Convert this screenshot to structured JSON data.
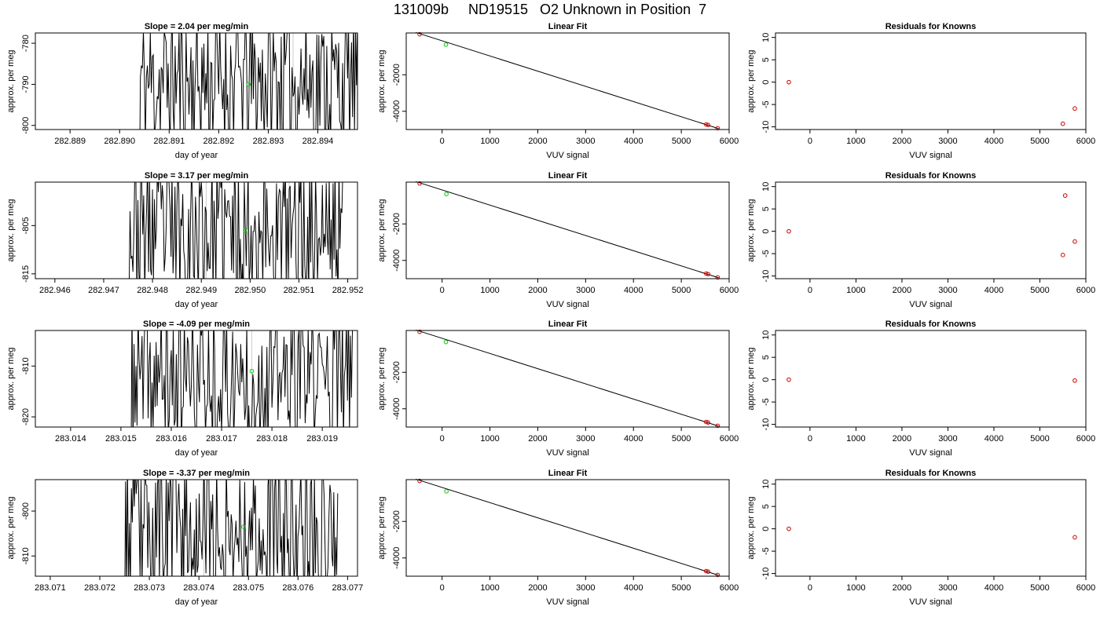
{
  "title": "131009b     ND19515   O2 Unknown in Position  7",
  "panel_labels": {
    "ylabel": "approx. per meg",
    "time_xlabel": "day of year",
    "fit_title": "Linear Fit",
    "fit_xlabel": "VUV signal",
    "resid_title": "Residuals for Knowns"
  },
  "colors": {
    "trace": "#000000",
    "marker_green": "#00cc00",
    "marker_red": "#cc0000",
    "grid_line": "#cccccc",
    "frame": "#000000"
  },
  "chart_data": [
    {
      "type": "line",
      "title": "Slope =  2.04  per meg/min",
      "xlabel": "day of year",
      "ylabel": "approx. per meg",
      "xlim": [
        282.8883,
        282.8948
      ],
      "ylim": [
        -801,
        -777.5
      ],
      "x_ticks": [
        "282.889",
        "282.890",
        "282.891",
        "282.892",
        "282.893",
        "282.894"
      ],
      "y_ticks": [
        "-800",
        "-790",
        "-780"
      ],
      "vlines": [
        282.8918,
        282.8935
      ],
      "trace_x_range": [
        282.8904,
        282.8948
      ],
      "seed": 11,
      "green_point": [
        282.8926,
        -790
      ]
    },
    {
      "type": "line",
      "title": "Slope =  3.17  per meg/min",
      "xlabel": "day of year",
      "ylabel": "approx. per meg",
      "xlim": [
        282.9456,
        282.9522
      ],
      "ylim": [
        -816,
        -796
      ],
      "x_ticks": [
        "282.946",
        "282.947",
        "282.948",
        "282.949",
        "282.950",
        "282.951",
        "282.952"
      ],
      "y_ticks": [
        "-815",
        "-805"
      ],
      "vlines": [
        282.9491,
        282.9508
      ],
      "trace_x_range": [
        282.9475,
        282.9519
      ],
      "seed": 23,
      "green_point": [
        282.9499,
        -806
      ]
    },
    {
      "type": "line",
      "title": "Slope =  -4.09  per meg/min",
      "xlabel": "day of year",
      "ylabel": "approx. per meg",
      "xlim": [
        283.0133,
        283.0197
      ],
      "ylim": [
        -822,
        -803
      ],
      "x_ticks": [
        "283.014",
        "283.015",
        "283.016",
        "283.017",
        "283.018",
        "283.019"
      ],
      "y_ticks": [
        "-820",
        "-810"
      ],
      "vlines": [
        283.0176,
        283.0185
      ],
      "trace_x_range": [
        283.0152,
        283.0196
      ],
      "seed": 37,
      "green_point": [
        283.0176,
        -811
      ]
    },
    {
      "type": "line",
      "title": "Slope =  -3.37  per meg/min",
      "xlabel": "day of year",
      "ylabel": "approx. per meg",
      "xlim": [
        283.0707,
        283.0772
      ],
      "ylim": [
        -814.5,
        -793
      ],
      "x_ticks": [
        "283.071",
        "283.072",
        "283.073",
        "283.074",
        "283.075",
        "283.076",
        "283.077"
      ],
      "y_ticks": [
        "-810",
        "-800"
      ],
      "vlines": [
        283.0741,
        283.0758
      ],
      "trace_x_range": [
        283.0725,
        283.0768
      ],
      "seed": 53,
      "green_point": [
        283.0749,
        -803.5
      ]
    },
    {
      "type": "scatter",
      "title": "Linear Fit",
      "xlabel": "VUV signal",
      "ylabel": "approx. per meg",
      "xlim": [
        -750,
        6000
      ],
      "ylim": [
        -5000,
        290
      ],
      "x_ticks": [
        "0",
        "1000",
        "2000",
        "3000",
        "4000",
        "5000",
        "6000"
      ],
      "y_ticks": [
        "-4000",
        "-2000"
      ],
      "fit_line": [
        [
          -550,
          320
        ],
        [
          5780,
          -4950
        ]
      ],
      "known_points": [
        [
          -470,
          220
        ],
        [
          5520,
          -4720
        ],
        [
          5560,
          -4750
        ],
        [
          5760,
          -4930
        ]
      ],
      "unknown_points": [
        [
          80,
          -350
        ]
      ]
    },
    {
      "type": "scatter",
      "title": "Linear Fit",
      "xlabel": "VUV signal",
      "ylabel": "approx. per meg",
      "xlim": [
        -750,
        6000
      ],
      "ylim": [
        -5000,
        290
      ],
      "x_ticks": [
        "0",
        "1000",
        "2000",
        "3000",
        "4000",
        "5000",
        "6000"
      ],
      "y_ticks": [
        "-4000",
        "-2000"
      ],
      "fit_line": [
        [
          -550,
          320
        ],
        [
          5780,
          -4950
        ]
      ],
      "known_points": [
        [
          -470,
          220
        ],
        [
          5520,
          -4720
        ],
        [
          5560,
          -4750
        ],
        [
          5760,
          -4930
        ]
      ],
      "unknown_points": [
        [
          90,
          -360
        ]
      ]
    },
    {
      "type": "scatter",
      "title": "Linear Fit",
      "xlabel": "VUV signal",
      "ylabel": "approx. per meg",
      "xlim": [
        -750,
        6000
      ],
      "ylim": [
        -5000,
        290
      ],
      "x_ticks": [
        "0",
        "1000",
        "2000",
        "3000",
        "4000",
        "5000",
        "6000"
      ],
      "y_ticks": [
        "-4000",
        "-2000"
      ],
      "fit_line": [
        [
          -550,
          320
        ],
        [
          5780,
          -4950
        ]
      ],
      "known_points": [
        [
          -470,
          220
        ],
        [
          5520,
          -4720
        ],
        [
          5560,
          -4750
        ],
        [
          5760,
          -4930
        ]
      ],
      "unknown_points": [
        [
          80,
          -340
        ]
      ]
    },
    {
      "type": "scatter",
      "title": "Linear Fit",
      "xlabel": "VUV signal",
      "ylabel": "approx. per meg",
      "xlim": [
        -750,
        6000
      ],
      "ylim": [
        -5000,
        290
      ],
      "x_ticks": [
        "0",
        "1000",
        "2000",
        "3000",
        "4000",
        "5000",
        "6000"
      ],
      "y_ticks": [
        "-4000",
        "-2000"
      ],
      "fit_line": [
        [
          -550,
          320
        ],
        [
          5780,
          -4950
        ]
      ],
      "known_points": [
        [
          -470,
          220
        ],
        [
          5520,
          -4720
        ],
        [
          5560,
          -4750
        ],
        [
          5760,
          -4930
        ]
      ],
      "unknown_points": [
        [
          90,
          -345
        ]
      ]
    },
    {
      "type": "scatter",
      "title": "Residuals for Knowns",
      "xlabel": "VUV signal",
      "ylabel": "approx. per meg",
      "xlim": [
        -750,
        6000
      ],
      "ylim": [
        -10.6,
        11
      ],
      "x_ticks": [
        "0",
        "1000",
        "2000",
        "3000",
        "4000",
        "5000",
        "6000"
      ],
      "y_ticks": [
        "-10",
        "-5",
        "0",
        "5",
        "10"
      ],
      "points": [
        [
          -460,
          0
        ],
        [
          5500,
          -9.3
        ],
        [
          5760,
          -5.9
        ]
      ]
    },
    {
      "type": "scatter",
      "title": "Residuals for Knowns",
      "xlabel": "VUV signal",
      "ylabel": "approx. per meg",
      "xlim": [
        -750,
        6000
      ],
      "ylim": [
        -10.6,
        11
      ],
      "x_ticks": [
        "0",
        "1000",
        "2000",
        "3000",
        "4000",
        "5000",
        "6000"
      ],
      "y_ticks": [
        "-10",
        "-5",
        "0",
        "5",
        "10"
      ],
      "points": [
        [
          -460,
          0
        ],
        [
          5550,
          8
        ],
        [
          5500,
          -5.3
        ],
        [
          5760,
          -2.3
        ]
      ]
    },
    {
      "type": "scatter",
      "title": "Residuals for Knowns",
      "xlabel": "VUV signal",
      "ylabel": "approx. per meg",
      "xlim": [
        -750,
        6000
      ],
      "ylim": [
        -10.6,
        11
      ],
      "x_ticks": [
        "0",
        "1000",
        "2000",
        "3000",
        "4000",
        "5000",
        "6000"
      ],
      "y_ticks": [
        "-10",
        "-5",
        "0",
        "5",
        "10"
      ],
      "points": [
        [
          -460,
          0
        ],
        [
          5760,
          -0.2
        ]
      ]
    },
    {
      "type": "scatter",
      "title": "Residuals for Knowns",
      "xlabel": "VUV signal",
      "ylabel": "approx. per meg",
      "xlim": [
        -750,
        6000
      ],
      "ylim": [
        -10.6,
        11
      ],
      "x_ticks": [
        "0",
        "1000",
        "2000",
        "3000",
        "4000",
        "5000",
        "6000"
      ],
      "y_ticks": [
        "-10",
        "-5",
        "0",
        "5",
        "10"
      ],
      "points": [
        [
          -460,
          0
        ],
        [
          5760,
          -1.9
        ]
      ]
    }
  ]
}
